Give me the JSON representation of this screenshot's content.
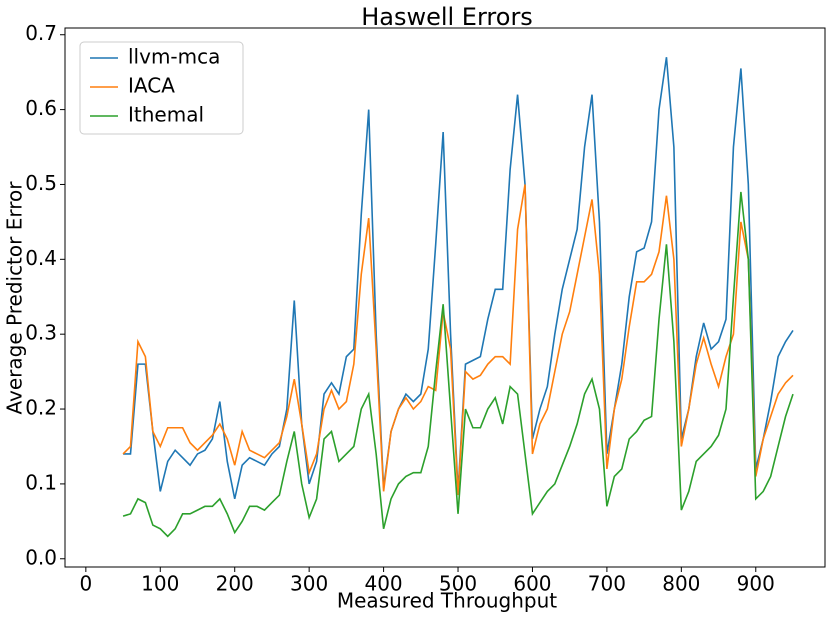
{
  "chart_data": {
    "type": "line",
    "title": "Haswell Errors",
    "xlabel": "Measured Throughput",
    "ylabel": "Average Predictor Error",
    "x": [
      50,
      60,
      70,
      80,
      90,
      100,
      110,
      120,
      130,
      140,
      150,
      160,
      170,
      180,
      190,
      200,
      210,
      220,
      230,
      240,
      250,
      260,
      270,
      280,
      290,
      300,
      310,
      320,
      330,
      340,
      350,
      360,
      370,
      380,
      390,
      400,
      410,
      420,
      430,
      440,
      450,
      460,
      470,
      480,
      490,
      500,
      510,
      520,
      530,
      540,
      550,
      560,
      570,
      580,
      590,
      600,
      610,
      620,
      630,
      640,
      650,
      660,
      670,
      680,
      690,
      700,
      710,
      720,
      730,
      740,
      750,
      760,
      770,
      780,
      790,
      800,
      810,
      820,
      830,
      840,
      850,
      860,
      870,
      880,
      890,
      900,
      910,
      920,
      930,
      940,
      950
    ],
    "series": [
      {
        "name": "llvm-mca",
        "color": "#1f77b4",
        "values": [
          0.14,
          0.14,
          0.26,
          0.26,
          0.17,
          0.09,
          0.13,
          0.145,
          0.135,
          0.125,
          0.14,
          0.145,
          0.16,
          0.21,
          0.13,
          0.08,
          0.125,
          0.135,
          0.13,
          0.125,
          0.14,
          0.15,
          0.2,
          0.345,
          0.18,
          0.1,
          0.13,
          0.22,
          0.235,
          0.22,
          0.27,
          0.28,
          0.46,
          0.6,
          0.3,
          0.095,
          0.17,
          0.2,
          0.22,
          0.21,
          0.22,
          0.28,
          0.42,
          0.57,
          0.3,
          0.09,
          0.26,
          0.265,
          0.27,
          0.32,
          0.36,
          0.36,
          0.52,
          0.62,
          0.5,
          0.16,
          0.2,
          0.23,
          0.3,
          0.36,
          0.4,
          0.44,
          0.55,
          0.62,
          0.45,
          0.14,
          0.2,
          0.26,
          0.35,
          0.41,
          0.415,
          0.45,
          0.6,
          0.67,
          0.55,
          0.16,
          0.2,
          0.27,
          0.315,
          0.28,
          0.29,
          0.32,
          0.55,
          0.655,
          0.5,
          0.12,
          0.16,
          0.21,
          0.27,
          0.29,
          0.305
        ]
      },
      {
        "name": "IACA",
        "color": "#ff7f0e",
        "values": [
          0.14,
          0.15,
          0.29,
          0.27,
          0.17,
          0.15,
          0.175,
          0.175,
          0.175,
          0.155,
          0.145,
          0.155,
          0.165,
          0.18,
          0.16,
          0.125,
          0.17,
          0.145,
          0.14,
          0.135,
          0.145,
          0.155,
          0.19,
          0.24,
          0.18,
          0.115,
          0.14,
          0.2,
          0.225,
          0.2,
          0.21,
          0.26,
          0.38,
          0.455,
          0.28,
          0.09,
          0.17,
          0.2,
          0.215,
          0.2,
          0.21,
          0.23,
          0.225,
          0.33,
          0.28,
          0.085,
          0.25,
          0.24,
          0.245,
          0.26,
          0.27,
          0.27,
          0.26,
          0.44,
          0.5,
          0.14,
          0.18,
          0.2,
          0.25,
          0.3,
          0.33,
          0.38,
          0.43,
          0.48,
          0.38,
          0.12,
          0.2,
          0.24,
          0.31,
          0.37,
          0.37,
          0.38,
          0.41,
          0.485,
          0.4,
          0.15,
          0.2,
          0.26,
          0.295,
          0.26,
          0.23,
          0.27,
          0.3,
          0.45,
          0.4,
          0.11,
          0.16,
          0.19,
          0.22,
          0.235,
          0.245
        ]
      },
      {
        "name": "Ithemal",
        "color": "#2ca02c",
        "values": [
          0.057,
          0.06,
          0.08,
          0.075,
          0.045,
          0.04,
          0.03,
          0.04,
          0.06,
          0.06,
          0.065,
          0.07,
          0.07,
          0.08,
          0.06,
          0.035,
          0.05,
          0.07,
          0.07,
          0.065,
          0.075,
          0.085,
          0.13,
          0.17,
          0.1,
          0.055,
          0.08,
          0.16,
          0.17,
          0.13,
          0.14,
          0.15,
          0.2,
          0.22,
          0.14,
          0.04,
          0.08,
          0.1,
          0.11,
          0.115,
          0.115,
          0.15,
          0.25,
          0.34,
          0.2,
          0.06,
          0.2,
          0.175,
          0.175,
          0.2,
          0.215,
          0.18,
          0.23,
          0.22,
          0.14,
          0.06,
          0.075,
          0.09,
          0.1,
          0.125,
          0.15,
          0.18,
          0.22,
          0.24,
          0.2,
          0.07,
          0.11,
          0.12,
          0.16,
          0.17,
          0.185,
          0.19,
          0.32,
          0.42,
          0.29,
          0.065,
          0.09,
          0.13,
          0.14,
          0.15,
          0.165,
          0.2,
          0.35,
          0.49,
          0.4,
          0.08,
          0.09,
          0.11,
          0.15,
          0.19,
          0.22
        ]
      }
    ],
    "xlim": [
      -28,
      993
    ],
    "ylim": [
      -0.011,
      0.709
    ],
    "xticks": [
      0,
      100,
      200,
      300,
      400,
      500,
      600,
      700,
      800,
      900
    ],
    "yticks": [
      {
        "value": 0,
        "label": "0.0"
      },
      0.1,
      0.2,
      0.3,
      0.4,
      0.5,
      0.6,
      0.7
    ],
    "legend": "upper-left"
  }
}
